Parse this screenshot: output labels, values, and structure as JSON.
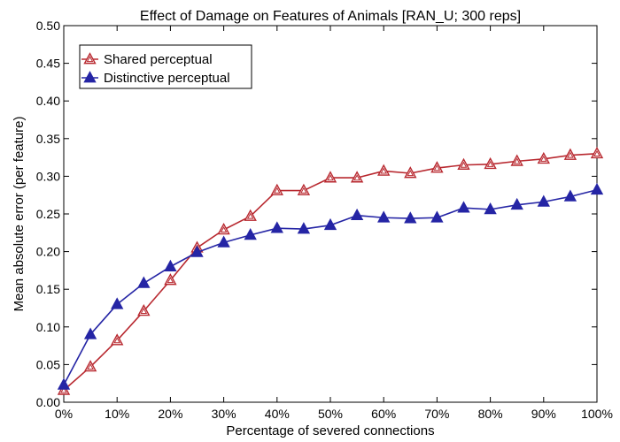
{
  "chart_data": {
    "type": "line",
    "title": "Effect of Damage on Features of Animals [RAN_U; 300 reps]",
    "xlabel": "Percentage of severed connections",
    "ylabel": "Mean absolute error (per feature)",
    "x": [
      0,
      5,
      10,
      15,
      20,
      25,
      30,
      35,
      40,
      45,
      50,
      55,
      60,
      65,
      70,
      75,
      80,
      85,
      90,
      95,
      100
    ],
    "x_tick_values": [
      0,
      10,
      20,
      30,
      40,
      50,
      60,
      70,
      80,
      90,
      100
    ],
    "x_tick_labels": [
      "0%",
      "10%",
      "20%",
      "30%",
      "40%",
      "50%",
      "60%",
      "70%",
      "80%",
      "90%",
      "100%"
    ],
    "xlim": [
      0,
      100
    ],
    "ylim": [
      0,
      0.5
    ],
    "y_tick_values": [
      0,
      0.05,
      0.1,
      0.15,
      0.2,
      0.25,
      0.3,
      0.35,
      0.4,
      0.45,
      0.5
    ],
    "y_tick_labels": [
      "0.00",
      "0.05",
      "0.10",
      "0.15",
      "0.20",
      "0.25",
      "0.30",
      "0.35",
      "0.40",
      "0.45",
      "0.50"
    ],
    "grid": false,
    "legend_position": "top-left",
    "series": [
      {
        "name": "Shared perceptual",
        "color": "#b8282f",
        "marker": "open-triangle",
        "values": [
          0.016,
          0.047,
          0.082,
          0.121,
          0.162,
          0.205,
          0.229,
          0.247,
          0.281,
          0.281,
          0.298,
          0.298,
          0.307,
          0.304,
          0.311,
          0.315,
          0.316,
          0.32,
          0.323,
          0.328,
          0.33
        ]
      },
      {
        "name": "Distinctive perceptual",
        "color": "#2525a5",
        "marker": "filled-triangle",
        "values": [
          0.023,
          0.09,
          0.13,
          0.158,
          0.18,
          0.199,
          0.212,
          0.222,
          0.231,
          0.23,
          0.235,
          0.248,
          0.245,
          0.244,
          0.245,
          0.258,
          0.256,
          0.262,
          0.266,
          0.273,
          0.282
        ]
      }
    ]
  }
}
